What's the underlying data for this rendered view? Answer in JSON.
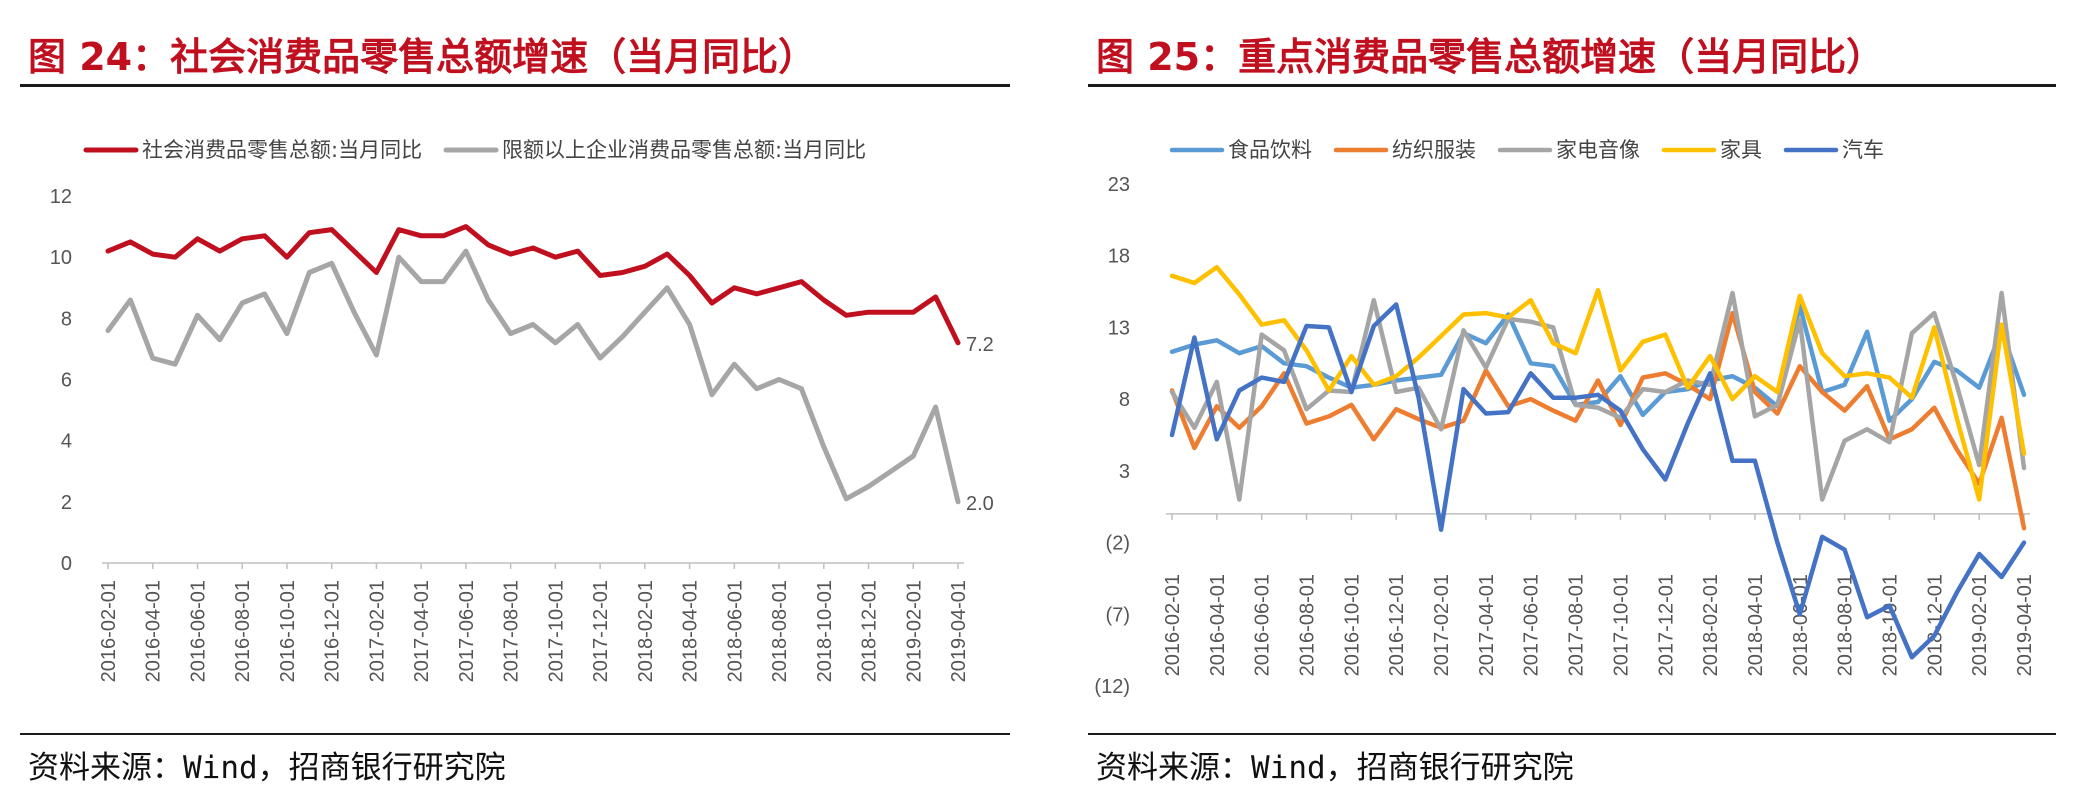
{
  "left": {
    "title": "图 24：社会消费品零售总额增速（当月同比）",
    "source": "资料来源：Wind，招商银行研究院"
  },
  "right": {
    "title": "图 25：重点消费品零售总额增速（当月同比）",
    "source": "资料来源：Wind，招商银行研究院"
  },
  "chart_data": [
    {
      "type": "line",
      "x": [
        "2016-02-01",
        "2016-03-01",
        "2016-04-01",
        "2016-05-01",
        "2016-06-01",
        "2016-07-01",
        "2016-08-01",
        "2016-09-01",
        "2016-10-01",
        "2016-11-01",
        "2016-12-01",
        "2017-01-01",
        "2017-02-01",
        "2017-03-01",
        "2017-04-01",
        "2017-05-01",
        "2017-06-01",
        "2017-07-01",
        "2017-08-01",
        "2017-09-01",
        "2017-10-01",
        "2017-11-01",
        "2017-12-01",
        "2018-01-01",
        "2018-02-01",
        "2018-03-01",
        "2018-04-01",
        "2018-05-01",
        "2018-06-01",
        "2018-07-01",
        "2018-08-01",
        "2018-09-01",
        "2018-10-01",
        "2018-11-01",
        "2018-12-01",
        "2019-01-01",
        "2019-02-01",
        "2019-03-01",
        "2019-04-01"
      ],
      "tick_labels": [
        "2016-02-01",
        "2016-04-01",
        "2016-06-01",
        "2016-08-01",
        "2016-10-01",
        "2016-12-01",
        "2017-02-01",
        "2017-04-01",
        "2017-06-01",
        "2017-08-01",
        "2017-10-01",
        "2017-12-01",
        "2018-02-01",
        "2018-04-01",
        "2018-06-01",
        "2018-08-01",
        "2018-10-01",
        "2018-12-01",
        "2019-02-01",
        "2019-04-01"
      ],
      "ylim": [
        0,
        12
      ],
      "yticks": [
        0,
        2,
        4,
        6,
        8,
        10,
        12
      ],
      "legend_position": "top",
      "series": [
        {
          "name": "社会消费品零售总额:当月同比",
          "color": "#c0101f",
          "values": [
            10.2,
            10.5,
            10.1,
            10.0,
            10.6,
            10.2,
            10.6,
            10.7,
            10.0,
            10.8,
            10.9,
            10.2,
            9.5,
            10.9,
            10.7,
            10.7,
            11.0,
            10.4,
            10.1,
            10.3,
            10.0,
            10.2,
            9.4,
            9.5,
            9.7,
            10.1,
            9.4,
            8.5,
            9.0,
            8.8,
            9.0,
            9.2,
            8.6,
            8.1,
            8.2,
            8.2,
            8.2,
            8.7,
            7.2
          ],
          "end_label": "7.2"
        },
        {
          "name": "限额以上企业消费品零售总额:当月同比",
          "color": "#a6a6a6",
          "values": [
            7.6,
            8.6,
            6.7,
            6.5,
            8.1,
            7.3,
            8.5,
            8.8,
            7.5,
            9.5,
            9.8,
            8.2,
            6.8,
            10.0,
            9.2,
            9.2,
            10.2,
            8.6,
            7.5,
            7.8,
            7.2,
            7.8,
            6.7,
            7.4,
            8.2,
            9.0,
            7.8,
            5.5,
            6.5,
            5.7,
            6.0,
            5.7,
            3.8,
            2.1,
            2.5,
            3.0,
            3.5,
            5.1,
            2.0
          ],
          "end_label": "2.0"
        }
      ]
    },
    {
      "type": "line",
      "x": [
        "2016-02-01",
        "2016-03-01",
        "2016-04-01",
        "2016-05-01",
        "2016-06-01",
        "2016-07-01",
        "2016-08-01",
        "2016-09-01",
        "2016-10-01",
        "2016-11-01",
        "2016-12-01",
        "2017-01-01",
        "2017-02-01",
        "2017-03-01",
        "2017-04-01",
        "2017-05-01",
        "2017-06-01",
        "2017-07-01",
        "2017-08-01",
        "2017-09-01",
        "2017-10-01",
        "2017-11-01",
        "2017-12-01",
        "2018-01-01",
        "2018-02-01",
        "2018-03-01",
        "2018-04-01",
        "2018-05-01",
        "2018-06-01",
        "2018-07-01",
        "2018-08-01",
        "2018-09-01",
        "2018-10-01",
        "2018-11-01",
        "2018-12-01",
        "2019-01-01",
        "2019-02-01",
        "2019-03-01",
        "2019-04-01"
      ],
      "tick_labels": [
        "2016-02-01",
        "2016-04-01",
        "2016-06-01",
        "2016-08-01",
        "2016-10-01",
        "2016-12-01",
        "2017-02-01",
        "2017-04-01",
        "2017-06-01",
        "2017-08-01",
        "2017-10-01",
        "2017-12-01",
        "2018-02-01",
        "2018-04-01",
        "2018-06-01",
        "2018-08-01",
        "2018-10-01",
        "2018-12-01",
        "2019-02-01",
        "2019-04-01"
      ],
      "ylim": [
        -12,
        23
      ],
      "yticks": [
        23,
        18,
        13,
        8,
        3,
        -2,
        -7,
        -12
      ],
      "ytick_labels": [
        "23",
        "18",
        "13",
        "8",
        "3",
        "(2)",
        "(7)",
        "(12)"
      ],
      "negative_tick_color": "#e0001b",
      "legend_position": "top",
      "series": [
        {
          "name": "食品饮料",
          "color": "#5b9bd5",
          "values": [
            11.3,
            11.8,
            12.1,
            11.2,
            11.7,
            10.5,
            10.3,
            9.5,
            8.8,
            9.0,
            9.3,
            9.5,
            9.7,
            12.6,
            11.9,
            13.9,
            10.5,
            10.3,
            7.6,
            7.8,
            9.6,
            6.9,
            8.5,
            8.7,
            9.3,
            9.6,
            8.8,
            7.5,
            14.5,
            8.5,
            9.0,
            12.7,
            6.5,
            8.0,
            10.6,
            10.0,
            8.8,
            12.8,
            8.3
          ],
          "end_label": ""
        },
        {
          "name": "纺织服装",
          "color": "#ed7d31",
          "values": [
            8.6,
            4.6,
            7.5,
            6.0,
            7.5,
            9.8,
            6.3,
            6.8,
            7.6,
            5.2,
            7.3,
            6.6,
            6.0,
            6.5,
            10.0,
            7.5,
            8.0,
            7.2,
            6.5,
            9.3,
            6.2,
            9.5,
            9.8,
            9.0,
            8.0,
            14.0,
            8.5,
            7.0,
            10.3,
            8.5,
            7.2,
            8.9,
            5.2,
            5.9,
            7.4,
            4.5,
            2.1,
            6.7,
            -1.0
          ],
          "end_label": ""
        },
        {
          "name": "家电音像",
          "color": "#a5a5a5",
          "values": [
            8.5,
            6.0,
            9.2,
            1.0,
            12.5,
            11.4,
            7.3,
            8.6,
            8.5,
            14.9,
            8.5,
            8.8,
            5.9,
            12.8,
            10.2,
            13.6,
            13.4,
            13.0,
            7.6,
            7.4,
            6.7,
            8.7,
            8.5,
            9.3,
            9.0,
            15.4,
            6.8,
            7.6,
            13.5,
            1.0,
            5.1,
            5.9,
            5.0,
            12.6,
            14.0,
            9.0,
            3.4,
            15.4,
            3.2
          ],
          "end_label": ""
        },
        {
          "name": "家具",
          "color": "#ffc000",
          "values": [
            16.6,
            16.1,
            17.2,
            15.3,
            13.2,
            13.5,
            11.4,
            8.6,
            11.0,
            9.0,
            9.6,
            10.9,
            12.4,
            13.9,
            14.0,
            13.7,
            14.9,
            11.9,
            11.2,
            15.6,
            10.0,
            12.0,
            12.5,
            8.8,
            11.0,
            8.0,
            9.6,
            8.5,
            15.2,
            11.2,
            9.6,
            9.8,
            9.5,
            8.1,
            13.0,
            6.7,
            1.0,
            13.2,
            4.2
          ],
          "end_label": ""
        },
        {
          "name": "汽车",
          "color": "#4472c4",
          "values": [
            5.5,
            12.3,
            5.2,
            8.6,
            9.5,
            9.2,
            13.1,
            13.0,
            8.5,
            13.1,
            14.6,
            8.1,
            -1.1,
            8.7,
            7.0,
            7.1,
            9.8,
            8.1,
            8.1,
            8.3,
            7.2,
            4.5,
            2.4,
            6.3,
            9.8,
            3.7,
            3.7,
            -2.0,
            -7.0,
            -1.6,
            -2.5,
            -7.2,
            -6.4,
            -10.0,
            -8.5,
            -5.5,
            -2.8,
            -4.4,
            -2.0
          ],
          "end_label": ""
        }
      ]
    }
  ]
}
